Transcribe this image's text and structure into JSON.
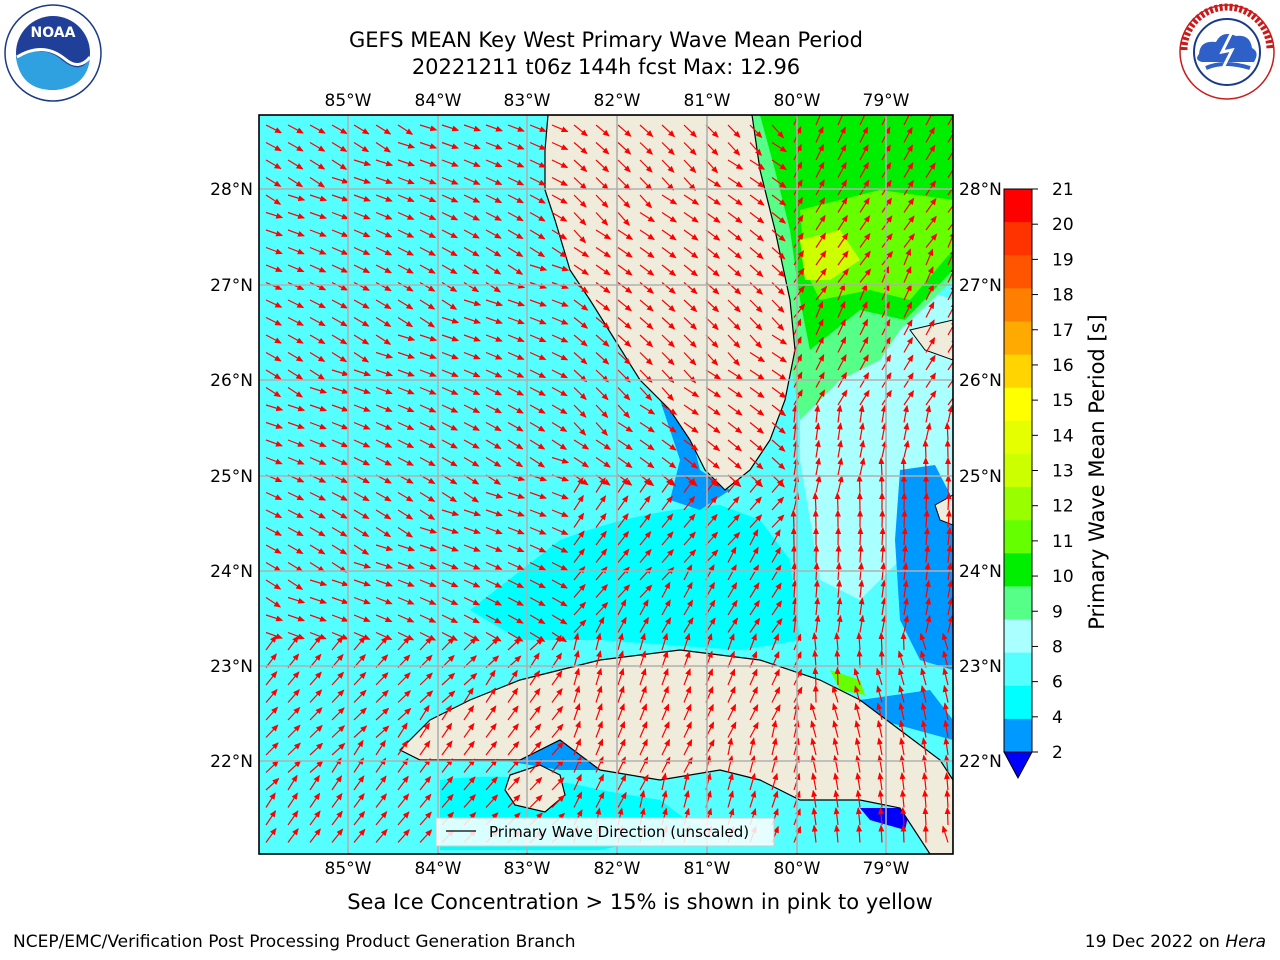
{
  "title": {
    "line1": "GEFS MEAN Key West Primary Wave Mean Period",
    "line2": "20221211 t06z 144h fcst   Max: 12.96"
  },
  "map": {
    "lon_labels": [
      "85°W",
      "84°W",
      "83°W",
      "82°W",
      "81°W",
      "80°W",
      "79°W"
    ],
    "lat_labels": [
      "28°N",
      "27°N",
      "26°N",
      "25°N",
      "24°N",
      "23°N",
      "22°N"
    ],
    "legend_text": "Primary Wave Direction (unscaled)",
    "arrow_color": "#ff0000",
    "land_color": "#efecdb"
  },
  "colorbar": {
    "label": "Primary Wave Mean Period [s]",
    "ticks": [
      "21",
      "20",
      "19",
      "18",
      "17",
      "16",
      "15",
      "14",
      "13",
      "12",
      "11",
      "10",
      "9",
      "8",
      "6",
      "4",
      "2"
    ],
    "colors": [
      "#ff0000",
      "#ff3300",
      "#ff5500",
      "#ff8000",
      "#ffaa00",
      "#ffd400",
      "#ffff00",
      "#e6ff00",
      "#ccff00",
      "#99ff00",
      "#66ff00",
      "#00ee00",
      "#55ff88",
      "#aaffff",
      "#55ffff",
      "#00ffff",
      "#0099ff",
      "#0000ff"
    ]
  },
  "footer": {
    "subnote": "Sea Ice Concentration > 15% is shown in pink to yellow",
    "org": "NCEP/EMC/Verification Post Processing Product Generation Branch",
    "date_prefix": "19 Dec 2022 on ",
    "date_machine": "Hera"
  },
  "logos": {
    "noaa_text": "NOAA",
    "nws_text": "NATIONAL WEATHER SERVICE"
  }
}
